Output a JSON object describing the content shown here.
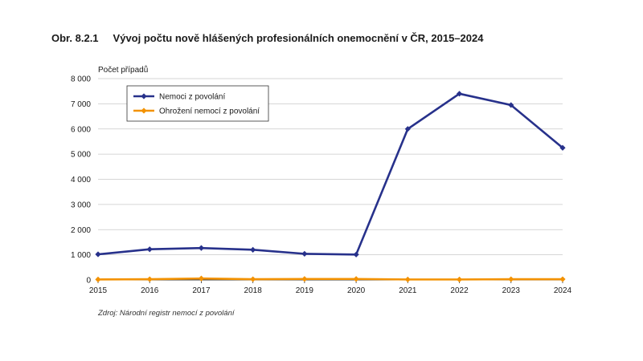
{
  "figure": {
    "number": "Obr. 8.2.1",
    "title": "Vývoj počtu nově hlášených profesionálních onemocnění v ČR, 2015–2024",
    "source": "Zdroj: Národní registr nemocí z povolání"
  },
  "chart_data": {
    "type": "line",
    "title": "Vývoj počtu nově hlášených profesionálních onemocnění v ČR, 2015–2024",
    "ylabel": "Počet případů",
    "xlabel": "",
    "categories": [
      "2015",
      "2016",
      "2017",
      "2018",
      "2019",
      "2020",
      "2021",
      "2022",
      "2023",
      "2024"
    ],
    "ylim": [
      0,
      8000
    ],
    "yticks": [
      0,
      1000,
      2000,
      3000,
      4000,
      5000,
      6000,
      7000,
      8000
    ],
    "ytick_labels": [
      "0",
      "1 000",
      "2 000",
      "3 000",
      "4 000",
      "5 000",
      "6 000",
      "7 000",
      "8 000"
    ],
    "grid": true,
    "legend_position": "top-left",
    "series": [
      {
        "name": "Nemoci z povolání",
        "color": "#27318b",
        "values": [
          1020,
          1220,
          1270,
          1200,
          1040,
          1010,
          6000,
          7400,
          6950,
          5250
        ]
      },
      {
        "name": "Ohrožení nemocí z povolání",
        "color": "#f39200",
        "values": [
          20,
          30,
          60,
          30,
          40,
          40,
          20,
          20,
          30,
          30
        ]
      }
    ]
  }
}
